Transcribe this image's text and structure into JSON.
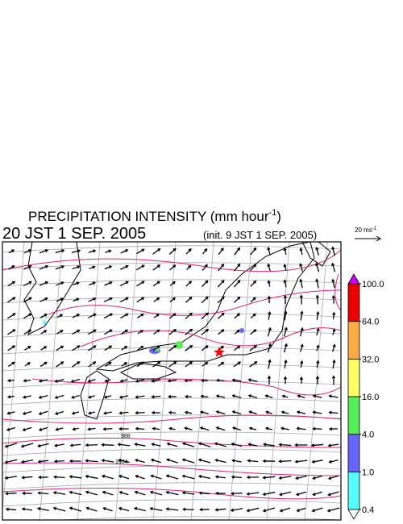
{
  "header": {
    "title": "PRECIPITATION INTENSITY (mm hour",
    "title_exponent": "-1",
    "title_close": ")",
    "valid_time": "20 JST 1 SEP. 2005",
    "init_time": "(init. 9 JST 1 SEP. 2005)"
  },
  "reference_vector": {
    "label": "20 ms",
    "exponent": "-1"
  },
  "contour_labels": [
    "988",
    "1004"
  ],
  "colorbar": {
    "levels": [
      {
        "value": 0.4,
        "label": "0.4"
      },
      {
        "value": 1,
        "label": "1.0"
      },
      {
        "value": 4,
        "label": "4.0"
      },
      {
        "value": 16,
        "label": "16.0"
      },
      {
        "value": 32,
        "label": "32.0"
      },
      {
        "value": 64,
        "label": "64.0"
      },
      {
        "value": 100,
        "label": "100.0"
      }
    ],
    "colors": [
      "#55ffff",
      "#6666ff",
      "#55ee55",
      "#ffff66",
      "#ffaa44",
      "#ee0000"
    ],
    "under_color": "#ffffff",
    "over_color": "#cc00ff"
  }
}
